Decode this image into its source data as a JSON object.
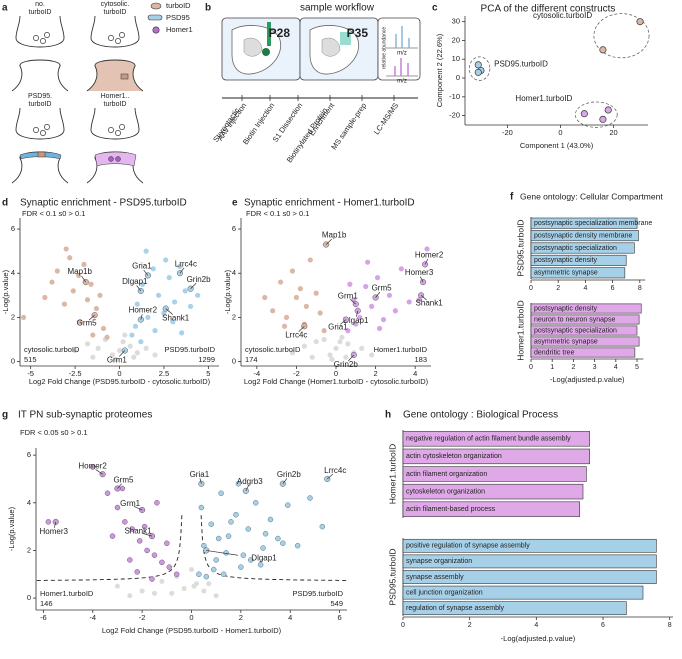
{
  "panel_labels": [
    "a",
    "b",
    "c",
    "d",
    "e",
    "f",
    "g",
    "h"
  ],
  "schematic": {
    "legend": [
      "turboID",
      "PSD95",
      "Homer1"
    ],
    "constructs": [
      [
        "no.",
        "turboID"
      ],
      [
        "cytosolic.",
        "turboID"
      ],
      [
        "PSD95.",
        "turboID"
      ],
      [
        "Homer1..",
        "turboID"
      ]
    ]
  },
  "workflow": {
    "title": "sample workflow",
    "ages": [
      "P28",
      "P35"
    ],
    "axis_labels": [
      "relative abundance",
      "m/z",
      "m/z"
    ],
    "steps": [
      [
        "Stereotactic",
        "AAV injection"
      ],
      [
        "Biotin Injection"
      ],
      [
        "S1 Dissection"
      ],
      [
        "Biotinylated Protein",
        "Enrichment"
      ],
      [
        "MS sample-prep"
      ],
      [
        "LC-MS/MS"
      ]
    ]
  },
  "chart_data": [
    {
      "type": "scatter",
      "title": "PCA of the different constructs",
      "xlabel": "Component 1 (43.0%)",
      "ylabel": "Component 2 (22.6%)",
      "xlim": [
        -36,
        33
      ],
      "ylim": [
        -25,
        33
      ],
      "xticks": [
        -20,
        0,
        20
      ],
      "yticks": [
        -20,
        -10,
        0,
        10,
        20,
        30
      ],
      "series": [
        {
          "name": "PSD95.turboID",
          "color": "#a6cfe8",
          "x": [
            -31,
            -30,
            -31
          ],
          "values": [
            7,
            4,
            3
          ]
        },
        {
          "name": "cytosolic.turboID",
          "color": "#dcb7a4",
          "x": [
            16,
            30
          ],
          "values": [
            15,
            30
          ]
        },
        {
          "name": "Homer1.turboID",
          "color": "#d9a6e6",
          "x": [
            18,
            9,
            16
          ],
          "values": [
            -17,
            -19,
            -22
          ]
        }
      ]
    },
    {
      "type": "volcano",
      "title": "Synaptic enrichment - PSD95.turboID",
      "subtitle": "FDR < 0.1 s0 > 0.1",
      "xlabel": "Log2 Fold Change (PSD95.turboID - cytosolic.turboID)",
      "ylabel": "-Log(p.value)",
      "xlim": [
        -5.6,
        5.6
      ],
      "ylim": [
        -0.2,
        6.5
      ],
      "xticks": [
        -5,
        -2.5,
        0,
        2.5,
        5
      ],
      "yticks": [
        0,
        2,
        4,
        6
      ],
      "series": [
        {
          "color": "#dcdcdc",
          "x": [
            -2.5,
            -1.8,
            -1.2,
            -0.8,
            -0.4,
            0,
            0.3,
            0.6,
            1.0,
            1.5,
            2.0,
            -1.5,
            0.2,
            -0.2,
            0.8
          ],
          "values": [
            0.5,
            0.8,
            0.6,
            1.0,
            0.3,
            0.5,
            1.2,
            0.7,
            0.4,
            0.6,
            0.3,
            0.2,
            0.9,
            0.1,
            0.2
          ]
        },
        {
          "color": "#dcb7a4",
          "x": [
            -5.4,
            -3.8,
            -3.5,
            -3.1,
            -2.8,
            -2.6,
            -2.3,
            -2.0,
            -1.8,
            -1.6,
            -1.3,
            -1.1,
            -0.9,
            -3.0,
            -2.2,
            -1.5,
            -4.2,
            -0.7
          ],
          "values": [
            2.0,
            3.6,
            4.1,
            2.6,
            4.7,
            3.2,
            3.9,
            4.4,
            2.8,
            3.5,
            2.4,
            3.0,
            1.5,
            5.1,
            1.8,
            1.2,
            2.9,
            1.1
          ]
        },
        {
          "color": "#a9d2ea",
          "x": [
            0.7,
            1.0,
            1.3,
            1.6,
            1.9,
            2.2,
            2.5,
            2.8,
            3.1,
            3.4,
            3.7,
            4.0,
            4.4,
            0.9,
            1.5,
            2.0,
            2.6,
            3.0,
            1.2,
            3.5
          ],
          "values": [
            1.2,
            2.6,
            3.5,
            2.0,
            4.2,
            3.0,
            2.2,
            3.8,
            2.7,
            4.3,
            3.2,
            2.5,
            3.0,
            1.6,
            5.0,
            1.4,
            4.6,
            1.8,
            0.9,
            1.3
          ]
        }
      ],
      "annotations": [
        {
          "text": "Map1b",
          "x": -1.9,
          "y": 3.6
        },
        {
          "text": "Grm5",
          "x": -1.4,
          "y": 2.1
        },
        {
          "text": "Grm1",
          "x": 0.3,
          "y": 0.5
        },
        {
          "text": "Homer2",
          "x": 1.2,
          "y": 1.9
        },
        {
          "text": "Dlgap1",
          "x": 1.2,
          "y": 3.2
        },
        {
          "text": "Gria1",
          "x": 1.6,
          "y": 3.9
        },
        {
          "text": "Lrrc4c",
          "x": 3.4,
          "y": 4.0
        },
        {
          "text": "Grin2b",
          "x": 4.0,
          "y": 3.3
        },
        {
          "text": "Shank1",
          "x": 2.6,
          "y": 2.4
        }
      ],
      "left_group": {
        "label": "cytosolic.turboID",
        "count": 515
      },
      "right_group": {
        "label": "PSD95.turboID",
        "count": 1299
      }
    },
    {
      "type": "volcano",
      "title": "Synaptic enrichment - Homer1.turboID",
      "subtitle": "FDR < 0.1 s0 > 0.1",
      "xlabel": "Log2 Fold Change (Homer1.turboID - cytosolic.turboID)",
      "ylabel": "-Log(p.value)",
      "xlim": [
        -4.8,
        4.8
      ],
      "ylim": [
        -0.2,
        6.5
      ],
      "xticks": [
        -4,
        -2,
        0,
        2,
        4
      ],
      "yticks": [
        0,
        2,
        4,
        6
      ],
      "series": [
        {
          "color": "#dcdcdc",
          "x": [
            -2.2,
            -1.6,
            -1.0,
            -0.6,
            -0.3,
            0,
            0.3,
            0.6,
            0.9,
            1.3,
            1.8,
            -1.2,
            0.2,
            -0.2,
            0.5
          ],
          "values": [
            0.4,
            0.7,
            0.9,
            1.0,
            0.3,
            0.6,
            1.1,
            0.8,
            0.4,
            0.6,
            0.3,
            0.2,
            0.9,
            0.1,
            0.2
          ]
        },
        {
          "color": "#dcb7a4",
          "x": [
            -3.2,
            -2.8,
            -2.5,
            -2.2,
            -2.0,
            -1.8,
            -1.5,
            -1.3,
            -1.0,
            -0.8,
            -2.6,
            -1.6,
            -3.6,
            -0.6
          ],
          "values": [
            2.3,
            3.6,
            2.0,
            4.1,
            2.9,
            3.3,
            2.5,
            4.6,
            3.1,
            2.2,
            1.6,
            1.7,
            2.9,
            1.4
          ]
        },
        {
          "color": "#d6a2e8",
          "x": [
            0.6,
            0.9,
            1.2,
            1.5,
            1.8,
            2.1,
            2.4,
            2.7,
            3.0,
            3.3,
            3.7,
            4.2,
            1.0,
            1.6,
            2.2,
            0.7,
            4.6
          ],
          "values": [
            1.4,
            2.8,
            2.0,
            3.4,
            2.5,
            3.8,
            1.9,
            3.0,
            2.3,
            4.2,
            2.7,
            2.8,
            1.7,
            4.5,
            1.5,
            3.5,
            5.1
          ]
        }
      ],
      "annotations": [
        {
          "text": "Map1b",
          "x": -0.5,
          "y": 5.3
        },
        {
          "text": "Homer2",
          "x": 4.5,
          "y": 4.4
        },
        {
          "text": "Homer3",
          "x": 4.4,
          "y": 3.6
        },
        {
          "text": "Shank1",
          "x": 4.3,
          "y": 3.0
        },
        {
          "text": "Grm5",
          "x": 2.0,
          "y": 2.9
        },
        {
          "text": "Grm1",
          "x": 1.0,
          "y": 2.6
        },
        {
          "text": "Dlgap1",
          "x": 1.1,
          "y": 2.3
        },
        {
          "text": "Gria1",
          "x": 0.5,
          "y": 1.9
        },
        {
          "text": "Lrrc4c",
          "x": -1.6,
          "y": 1.6
        },
        {
          "text": "Grin2b",
          "x": 0.9,
          "y": 0.3
        }
      ],
      "left_group": {
        "label": "cytosolic.turboID",
        "count": 174
      },
      "right_group": {
        "label": "Homer1.turboID",
        "count": 183
      }
    },
    {
      "type": "bar",
      "title": "Gene ontology: Cellular Compartment",
      "xlabel": "-Log(adjusted.p.value)",
      "groups": [
        {
          "name": "PSD95.turboID",
          "color": "#a6cfe8",
          "categories": [
            "postsynaptic specialization membrane",
            "postsynaptic density membrane",
            "postsynaptic specialization",
            "postsynaptic density",
            "asymmetric synapse"
          ],
          "values": [
            7.8,
            7.9,
            7.6,
            7.0,
            6.9
          ],
          "xlim": [
            0,
            8.4
          ],
          "xticks": [
            0,
            2,
            4,
            6,
            8
          ]
        },
        {
          "name": "Homer1.turboID",
          "color": "#dfa9e8",
          "categories": [
            "postsynaptic density",
            "neuron to neuron synapse",
            "postsynaptic specialization",
            "asymmetric synapse",
            "dendritic tree"
          ],
          "values": [
            5.2,
            5.1,
            5.0,
            5.1,
            4.9
          ],
          "xlim": [
            0,
            5.3
          ],
          "xticks": [
            0,
            1,
            2,
            3,
            4,
            5
          ]
        }
      ]
    },
    {
      "type": "volcano",
      "title": "IT PN sub-synaptic proteomes",
      "subtitle": "FDR < 0.05 s0 > 0.1",
      "xlabel": "Log2 Fold Change (PSD95.turboID - Homer1.turboID)",
      "ylabel": "-Log(p.value)",
      "xlim": [
        -6.3,
        6.3
      ],
      "ylim": [
        -0.5,
        6.3
      ],
      "xticks": [
        -6,
        -4,
        -2,
        0,
        2,
        4,
        6
      ],
      "yticks": [
        0,
        2,
        4,
        6
      ],
      "series": [
        {
          "color": "#dcdcdc",
          "x": [
            -3,
            -2,
            -1.2,
            -0.6,
            -0.3,
            0,
            0.2,
            -1.5,
            0.5,
            1,
            -0.8,
            0.1,
            -2.5,
            0.7
          ],
          "values": [
            0.5,
            0.3,
            0.7,
            0.9,
            0.4,
            1.2,
            0.6,
            0.2,
            0.3,
            0.1,
            0.2,
            0.5,
            0.1,
            0.6
          ]
        },
        {
          "color": "#c99ad8",
          "x": [
            -5.8,
            -4.0,
            -3.4,
            -3.0,
            -2.7,
            -2.4,
            -2.1,
            -1.8,
            -1.5,
            -1.2,
            -0.9,
            -0.6,
            -2.5,
            -1.9,
            -1.4,
            -3.2,
            -2.8,
            -1.0,
            -2.2,
            -1.6
          ],
          "values": [
            3.2,
            5.5,
            4.4,
            3.8,
            3.2,
            2.9,
            2.4,
            2.0,
            1.8,
            1.5,
            1.3,
            1.0,
            1.6,
            3.0,
            4.0,
            2.6,
            4.6,
            2.3,
            1.1,
            0.8
          ]
        },
        {
          "color": "#a9cfe3",
          "x": [
            0.3,
            0.5,
            0.8,
            1.0,
            1.2,
            1.5,
            1.8,
            2.0,
            2.3,
            2.6,
            2.9,
            3.2,
            3.5,
            3.9,
            4.3,
            4.8,
            5.3,
            0.4,
            0.9,
            1.4,
            1.9,
            2.4,
            3.0,
            0.6,
            1.1,
            1.6,
            2.1,
            2.8,
            3.7,
            1.3
          ],
          "values": [
            1.0,
            2.2,
            3.1,
            1.6,
            4.4,
            2.6,
            3.5,
            1.3,
            2.9,
            4.0,
            2.1,
            3.3,
            2.5,
            3.9,
            2.2,
            4.2,
            3.0,
            3.8,
            1.2,
            1.9,
            4.8,
            1.6,
            2.7,
            0.9,
            2.5,
            3.2,
            1.8,
            1.4,
            2.3,
            1.0
          ]
        }
      ],
      "annotations": [
        {
          "text": "Lrrc4c",
          "x": 5.5,
          "y": 5.0
        },
        {
          "text": "Homer2",
          "x": -3.6,
          "y": 5.2
        },
        {
          "text": "Grm5",
          "x": -3.0,
          "y": 4.6
        },
        {
          "text": "Grm1",
          "x": -2.0,
          "y": 3.7
        },
        {
          "text": "Homer3",
          "x": -5.5,
          "y": 3.2
        },
        {
          "text": "Shank1",
          "x": -1.6,
          "y": 2.6
        },
        {
          "text": "Gria1",
          "x": 0.4,
          "y": 4.8
        },
        {
          "text": "Adgrb3",
          "x": 2.2,
          "y": 4.5
        },
        {
          "text": "Grin2b",
          "x": 3.7,
          "y": 4.8
        },
        {
          "text": "Dlgap1",
          "x": 0.6,
          "y": 2.0
        }
      ],
      "left_group": {
        "label": "Homer1.turboID",
        "count": 146
      },
      "right_group": {
        "label": "PSD95.turboID",
        "count": 549
      }
    },
    {
      "type": "bar",
      "title": "Gene ontology : Biological Process",
      "xlabel": "-Log(adjusted.p.value)",
      "xlim": [
        0,
        8.1
      ],
      "xticks": [
        0,
        2,
        4,
        6,
        8
      ],
      "groups": [
        {
          "name": "Homer1.turboID",
          "color": "#dfa9e8",
          "categories": [
            "negative regulation of actin filament bundle assembly",
            "actin cytoskeleton organization",
            "actin filament organization",
            "cytoskeleton organization",
            "actin filament-based process"
          ],
          "values": [
            5.6,
            5.6,
            5.5,
            5.4,
            5.3
          ]
        },
        {
          "name": "PSD95.turboID",
          "color": "#a6cfe8",
          "categories": [
            "positive regulation of synapse assembly",
            "synapse organization",
            "synapse assembly",
            "cell junction organization",
            "regulation of synapse assembly"
          ],
          "values": [
            7.6,
            7.6,
            7.6,
            7.2,
            6.7
          ]
        }
      ]
    }
  ]
}
